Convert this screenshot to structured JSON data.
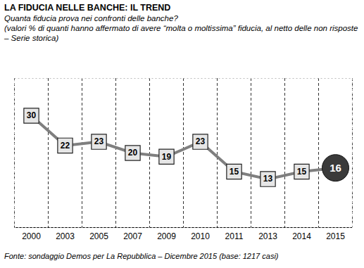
{
  "chart_data": {
    "type": "line",
    "title": "LA FIDUCIA NELLE BANCHE: IL TREND",
    "subtitle": [
      "Quanta fiducia prova nei confronti delle banche?",
      "(valori % di quanti hanno affermato di avere “molta o moltissima” fiducia, al netto delle non risposte – Serie storica)"
    ],
    "source": "Fonte: sondaggio Demos per La Repubblica – Dicembre 2015 (base: 1217 casi)",
    "categories": [
      "2000",
      "2003",
      "2005",
      "2007",
      "2009",
      "2010",
      "2011",
      "2013",
      "2014",
      "2015"
    ],
    "values": [
      30,
      22,
      23,
      20,
      19,
      23,
      15,
      13,
      15,
      16
    ],
    "color": "#7f7f7f",
    "marker": "square",
    "ylim": [
      0,
      40
    ],
    "yticks": [],
    "grid": true,
    "data_labels": true,
    "tick_labels": "x"
  }
}
